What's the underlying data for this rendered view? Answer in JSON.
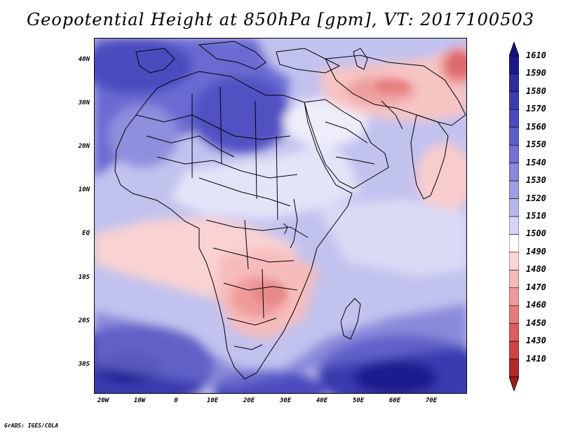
{
  "title": "Geopotential Height at 850hPa [gpm], VT: 2017100503",
  "footer": "GrADS: IGES/COLA",
  "lat_labels": [
    "40N",
    "30N",
    "20N",
    "10N",
    "EQ",
    "10S",
    "20S",
    "30S"
  ],
  "lon_labels": [
    "20W",
    "10W",
    "0",
    "10E",
    "20E",
    "30E",
    "40E",
    "50E",
    "60E",
    "70E"
  ],
  "colorbar": {
    "labels": [
      "1610",
      "1590",
      "1580",
      "1570",
      "1560",
      "1550",
      "1540",
      "1530",
      "1520",
      "1510",
      "1500",
      "1490",
      "1480",
      "1470",
      "1460",
      "1450",
      "1430",
      "1410"
    ],
    "colors": [
      "#1a1a8c",
      "#2d2d9e",
      "#3c3cb0",
      "#4b4bbf",
      "#5e5ec9",
      "#7272d2",
      "#8787db",
      "#9e9ee5",
      "#b7b7ee",
      "#d4d4f6",
      "#ffffff",
      "#fbd6d6",
      "#f6b8b8",
      "#ef9a9a",
      "#e67c7c",
      "#dc5e5e",
      "#d04444",
      "#b02a2a"
    ],
    "top_color": "#14147a",
    "bottom_color": "#9a1f1f"
  }
}
